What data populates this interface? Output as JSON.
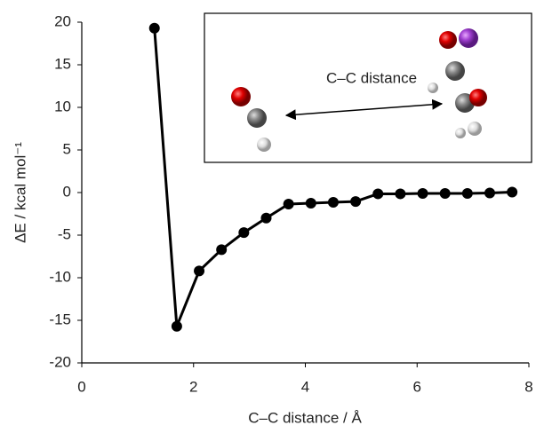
{
  "chart_data": {
    "type": "line",
    "x_label": "C–C distance / Å",
    "y_label": "ΔE / kcal mol⁻¹",
    "annotation": "C–C distance",
    "x": [
      1.3,
      1.7,
      2.1,
      2.5,
      2.9,
      3.3,
      3.7,
      4.1,
      4.5,
      4.9,
      5.3,
      5.7,
      6.1,
      6.5,
      6.9,
      7.3,
      7.7
    ],
    "series": [
      {
        "color": "#000000",
        "values": [
          19.3,
          -15.7,
          -9.2,
          -6.7,
          -4.7,
          -3.0,
          -1.35,
          -1.25,
          -1.15,
          -1.05,
          -0.15,
          -0.15,
          -0.1,
          -0.1,
          -0.1,
          -0.05,
          0.05
        ]
      }
    ],
    "xlim": [
      0,
      8
    ],
    "xticks": [
      0,
      2,
      4,
      6,
      8
    ],
    "ylim": [
      -20,
      20
    ],
    "yticks": [
      -20,
      -15,
      -10,
      -5,
      0,
      5,
      10,
      15,
      20
    ],
    "grid": false
  }
}
